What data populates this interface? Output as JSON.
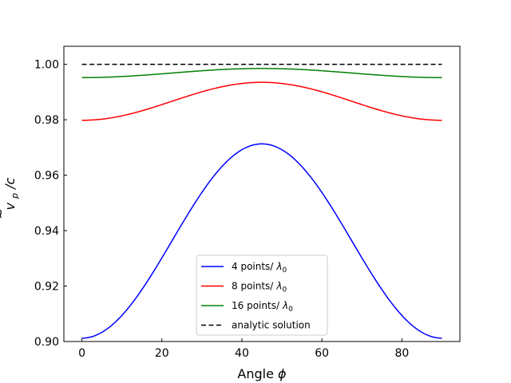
{
  "chart_data": {
    "type": "line",
    "title": "",
    "xlabel": "Angle",
    "xlabel_symbol": "ϕ",
    "ylabel_v": "v",
    "ylabel_sub": "p",
    "ylabel_rest": "/c",
    "xlim": [
      -4.5,
      94.5
    ],
    "ylim": [
      0.9,
      1.0065
    ],
    "x_ticks": [
      0,
      20,
      40,
      60,
      80
    ],
    "y_ticks": [
      0.9,
      0.92,
      0.94,
      0.96,
      0.98,
      1.0
    ],
    "x_tick_labels": [
      "0",
      "20",
      "40",
      "60",
      "80"
    ],
    "y_tick_labels": [
      "0.90",
      "0.92",
      "0.94",
      "0.96",
      "0.98",
      "1.00"
    ],
    "legend_position": "lower-center",
    "series": [
      {
        "name": "4 points/ λ0",
        "label_text": "4 points/",
        "color": "#0000ff",
        "dash": "solid",
        "min": 0.9012,
        "max": 0.9713
      },
      {
        "name": "8 points/ λ0",
        "label_text": "8 points/",
        "color": "#ff0000",
        "dash": "solid",
        "min": 0.9798,
        "max": 0.9935
      },
      {
        "name": "16 points/ λ0",
        "label_text": "16 points/",
        "color": "#008000",
        "dash": "solid",
        "min": 0.9952,
        "max": 0.9985
      },
      {
        "name": "analytic solution",
        "label_text": "analytic solution",
        "color": "#000000",
        "dash": "dashed",
        "min": 1.0,
        "max": 1.0
      }
    ],
    "x_range": [
      0,
      90
    ],
    "lambda_symbol": "λ",
    "lambda_sub": "0"
  }
}
